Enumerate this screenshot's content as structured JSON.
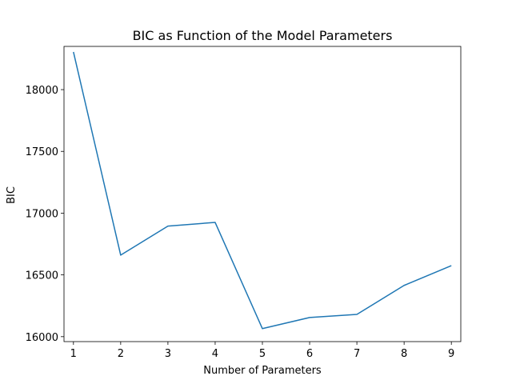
{
  "chart_data": {
    "type": "line",
    "title": "BIC as Function of the Model Parameters",
    "xlabel": "Number of Parameters",
    "ylabel": "BIC",
    "x": [
      1,
      2,
      3,
      4,
      5,
      6,
      7,
      8,
      9
    ],
    "series": [
      {
        "values": [
          18305,
          16660,
          16895,
          16925,
          16065,
          16155,
          16180,
          16415,
          16575
        ]
      }
    ],
    "xlim": [
      0.8,
      9.2
    ],
    "ylim": [
      15960,
      18350
    ],
    "xticks": [
      "1",
      "2",
      "3",
      "4",
      "5",
      "6",
      "7",
      "8",
      "9"
    ],
    "yticks": [
      "16000",
      "16500",
      "17000",
      "17500",
      "18000"
    ],
    "ytick_values": [
      16000,
      16500,
      17000,
      17500,
      18000
    ],
    "grid": false,
    "line_color": "#1f77b4"
  }
}
